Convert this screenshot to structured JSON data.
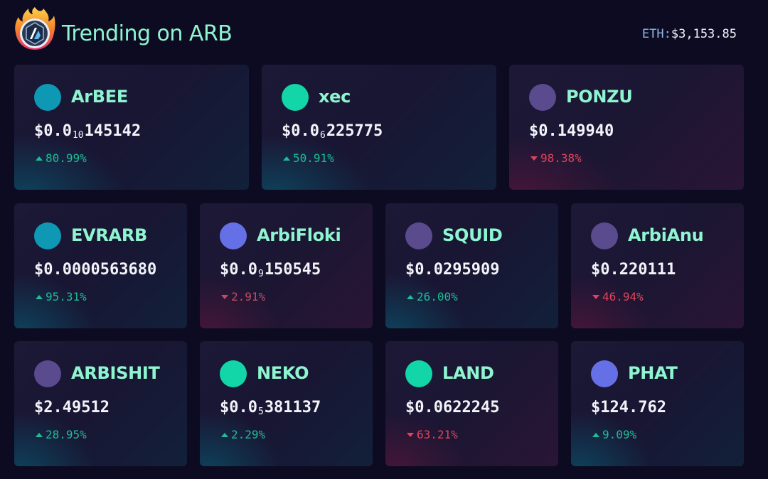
{
  "header": {
    "title": "Trending on ARB",
    "logo_icon": "arbitrum-flame-logo-icon",
    "eth_label": "ETH:",
    "eth_value": "$3,153.85"
  },
  "colors": {
    "accent": "#8ef5d0",
    "up": "#1fbd95",
    "down": "#e0445c",
    "background": "#0d0b22"
  },
  "tokens": [
    {
      "name": "ArBEE",
      "price_prefix": "$0.0",
      "price_sub": "10",
      "price_rest": "145142",
      "change": "80.99%",
      "direction": "up",
      "dot_color": "#0e98b4"
    },
    {
      "name": "xec",
      "price_prefix": "$0.0",
      "price_sub": "6",
      "price_rest": "225775",
      "change": "50.91%",
      "direction": "up",
      "dot_color": "#12d6a8"
    },
    {
      "name": "PONZU",
      "price_prefix": "$0.149940",
      "price_sub": "",
      "price_rest": "",
      "change": "98.38%",
      "direction": "down",
      "dot_color": "#5a4a8e"
    },
    {
      "name": "EVRARB",
      "price_prefix": "$0.0000563680",
      "price_sub": "",
      "price_rest": "",
      "change": "95.31%",
      "direction": "up",
      "dot_color": "#0e98b4"
    },
    {
      "name": "ArbiFloki",
      "price_prefix": "$0.0",
      "price_sub": "9",
      "price_rest": "150545",
      "change": "2.91%",
      "direction": "down",
      "dot_color": "#6670e6"
    },
    {
      "name": "SQUID",
      "price_prefix": "$0.0295909",
      "price_sub": "",
      "price_rest": "",
      "change": "26.00%",
      "direction": "up",
      "dot_color": "#5a4a8e"
    },
    {
      "name": "ArbiAnu",
      "price_prefix": "$0.220111",
      "price_sub": "",
      "price_rest": "",
      "change": "46.94%",
      "direction": "down",
      "dot_color": "#5a4a8e"
    },
    {
      "name": "ARBISHIT",
      "price_prefix": "$2.49512",
      "price_sub": "",
      "price_rest": "",
      "change": "28.95%",
      "direction": "up",
      "dot_color": "#5a4a8e"
    },
    {
      "name": "NEKO",
      "price_prefix": "$0.0",
      "price_sub": "5",
      "price_rest": "381137",
      "change": "2.29%",
      "direction": "up",
      "dot_color": "#12d6a8"
    },
    {
      "name": "LAND",
      "price_prefix": "$0.0622245",
      "price_sub": "",
      "price_rest": "",
      "change": "63.21%",
      "direction": "down",
      "dot_color": "#12d6a8"
    },
    {
      "name": "PHAT",
      "price_prefix": "$124.762",
      "price_sub": "",
      "price_rest": "",
      "change": "9.09%",
      "direction": "up",
      "dot_color": "#6670e6"
    }
  ]
}
